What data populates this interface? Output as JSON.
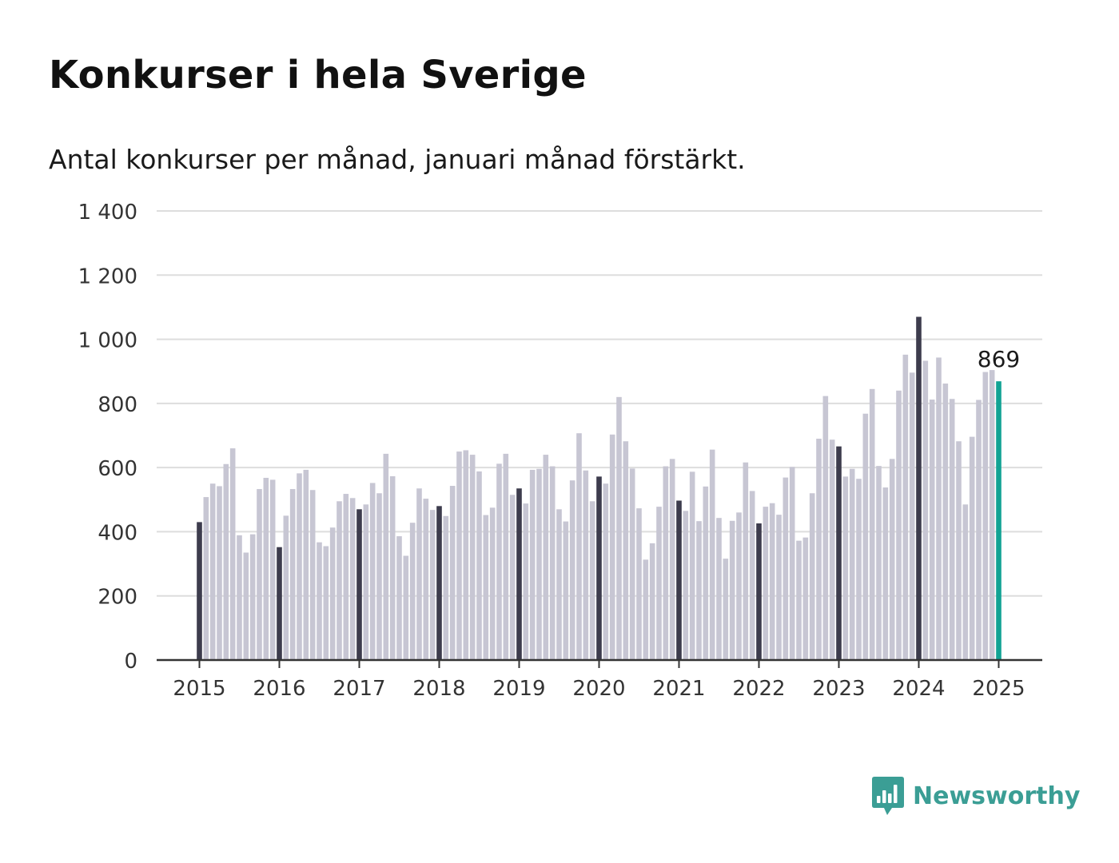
{
  "header": {
    "title": "Konkurser i hela Sverige",
    "subtitle": "Antal konkurser per månad, januari månad förstärkt."
  },
  "brand": {
    "name": "Newsworthy",
    "icon": "newsworthy-logo-icon",
    "color": "#3b9e95"
  },
  "colors": {
    "month_bar": "#c7c6d3",
    "january_bar": "#3d3c4d",
    "latest_bar": "#12a394",
    "grid": "#dddddd",
    "axis": "#333333"
  },
  "chart_data": {
    "type": "bar",
    "x_start": "2015-01",
    "x_end": "2025-01",
    "xticks": [
      "2015",
      "2016",
      "2017",
      "2018",
      "2019",
      "2020",
      "2021",
      "2022",
      "2023",
      "2024",
      "2025"
    ],
    "yticks": [
      "0",
      "200",
      "400",
      "600",
      "800",
      "1 000",
      "1 200",
      "1 400"
    ],
    "ylim": [
      0,
      1400
    ],
    "grid": true,
    "highlight": "January bars emphasized; latest month highlighted",
    "annotation": {
      "x": "2025-01",
      "value": 869,
      "label": "869"
    },
    "series": [
      {
        "values": [
          430,
          508,
          550,
          542,
          611,
          660,
          389,
          335,
          392,
          533,
          568,
          562,
          352,
          450,
          533,
          582,
          593,
          530,
          367,
          355,
          413,
          495,
          518,
          505,
          470,
          485,
          552,
          520,
          643,
          573,
          386,
          325,
          428,
          535,
          503,
          468,
          480,
          449,
          543,
          650,
          654,
          640,
          588,
          452,
          475,
          612,
          643,
          515,
          535,
          488,
          593,
          596,
          640,
          604,
          470,
          432,
          560,
          707,
          591,
          495,
          572,
          550,
          703,
          820,
          682,
          597,
          473,
          313,
          364,
          478,
          604,
          627,
          497,
          465,
          587,
          433,
          541,
          656,
          443,
          316,
          434,
          460,
          616,
          527,
          426,
          478,
          489,
          453,
          569,
          602,
          372,
          382,
          520,
          690,
          823,
          687,
          666,
          572,
          596,
          565,
          768,
          845,
          605,
          538,
          627,
          840,
          952,
          896,
          1070,
          933,
          812,
          943,
          862,
          814,
          682,
          485,
          696,
          811,
          898,
          904,
          869
        ]
      }
    ]
  }
}
